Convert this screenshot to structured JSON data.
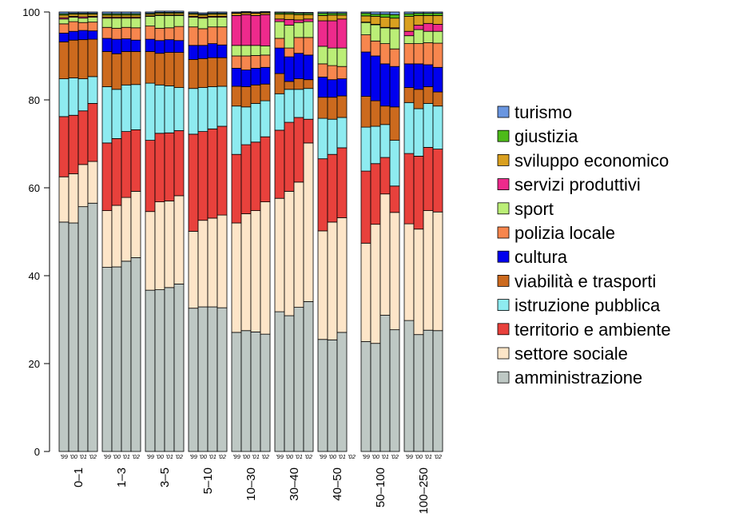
{
  "chart_data": {
    "type": "stacked_bar",
    "groups": [
      "0–1",
      "1–3",
      "3–5",
      "5–10",
      "10–30",
      "30–40",
      "40–50",
      "50–100",
      "100–250"
    ],
    "categories": [
      "'99",
      "'00",
      "'01",
      "'02",
      "'99",
      "'00",
      "'01",
      "'02",
      "'99",
      "'00",
      "'01",
      "'02",
      "'99",
      "'00",
      "'01",
      "'02",
      "'99",
      "'00",
      "'01",
      "'02",
      "'99",
      "'00",
      "'01",
      "'02",
      "'99",
      "'00",
      "'01",
      "'02",
      "'99",
      "'00",
      "'01",
      "'02",
      "'99",
      "'00",
      "'01",
      "'02"
    ],
    "ylim": [
      0,
      100
    ],
    "yticks": [
      0,
      20,
      40,
      60,
      80,
      100
    ],
    "series": [
      {
        "name": "amministrazione",
        "color": "#bec8c4",
        "values": [
          52.2,
          52.0,
          55.7,
          56.5,
          41.9,
          42.0,
          43.3,
          44.1,
          36.7,
          36.8,
          37.3,
          38.1,
          32.6,
          32.9,
          32.9,
          32.7,
          27.1,
          27.5,
          27.2,
          26.7,
          31.8,
          30.9,
          32.8,
          34.1,
          25.5,
          25.4,
          27.1,
          0,
          25.0,
          24.6,
          31.0,
          27.7,
          29.8,
          26.6,
          27.6,
          27.5
        ]
      },
      {
        "name": "settore sociale",
        "color": "#fde5c8",
        "values": [
          10.3,
          11.2,
          9.6,
          9.5,
          12.9,
          14.0,
          14.5,
          15.1,
          17.9,
          20.0,
          19.7,
          20.1,
          17.5,
          19.7,
          20.2,
          21.1,
          24.9,
          26.6,
          27.6,
          30.1,
          25.8,
          28.3,
          28.5,
          36.1,
          24.7,
          26.8,
          26.1,
          0,
          22.4,
          27.1,
          27.6,
          26.7,
          22.0,
          24.0,
          27.2,
          27.0
        ]
      },
      {
        "name": "territorio e ambiente",
        "color": "#e8413c",
        "values": [
          13.7,
          13.3,
          12.2,
          13.2,
          15.4,
          15.2,
          15.0,
          14.0,
          16.2,
          15.6,
          15.5,
          14.8,
          22.1,
          20.2,
          20.3,
          20.2,
          15.6,
          15.7,
          15.6,
          14.8,
          15.5,
          15.7,
          14.7,
          5.4,
          16.4,
          15.4,
          15.9,
          0,
          16.4,
          13.8,
          8.3,
          6.0,
          16.0,
          16.6,
          14.4,
          14.3
        ]
      },
      {
        "name": "istruzione pubblica",
        "color": "#8eebf0",
        "values": [
          8.6,
          8.5,
          7.3,
          6.1,
          12.8,
          11.2,
          10.6,
          10.3,
          13.0,
          11.0,
          10.7,
          9.8,
          10.4,
          10.0,
          9.6,
          9.1,
          11.0,
          8.6,
          8.8,
          8.2,
          8.3,
          7.5,
          6.4,
          7.0,
          9.2,
          8.0,
          6.9,
          0,
          10.0,
          8.5,
          7.5,
          10.4,
          11.6,
          10.8,
          10.0,
          9.8
        ]
      },
      {
        "name": "viabilità e trasporti",
        "color": "#cc6a1e",
        "values": [
          8.4,
          8.6,
          8.9,
          8.5,
          8.0,
          8.1,
          7.6,
          7.5,
          7.2,
          7.2,
          7.6,
          8.0,
          6.6,
          6.6,
          6.6,
          6.5,
          4.5,
          4.6,
          4.2,
          3.8,
          4.6,
          1.8,
          2.4,
          2.0,
          4.8,
          5.0,
          4.9,
          0,
          7.0,
          5.8,
          4.2,
          7.6,
          3.4,
          4.4,
          3.8,
          3.2
        ]
      },
      {
        "name": "cultura",
        "color": "#0000ee",
        "values": [
          2.0,
          2.0,
          2.1,
          1.9,
          3.0,
          3.3,
          2.9,
          2.6,
          2.8,
          2.9,
          2.9,
          2.7,
          3.2,
          3.0,
          3.2,
          2.9,
          4.1,
          3.8,
          3.8,
          3.8,
          5.8,
          5.6,
          5.8,
          5.6,
          4.6,
          4.0,
          3.9,
          0,
          10.1,
          10.2,
          9.6,
          9.2,
          5.4,
          5.8,
          5.0,
          5.6
        ]
      },
      {
        "name": "polizia locale",
        "color": "#f7864e",
        "values": [
          2.1,
          2.2,
          1.8,
          2.0,
          2.5,
          2.5,
          2.6,
          2.8,
          3.0,
          2.8,
          2.7,
          3.2,
          4.2,
          3.8,
          3.8,
          4.1,
          2.8,
          3.2,
          2.9,
          2.8,
          2.2,
          2.0,
          3.6,
          4.0,
          3.0,
          3.2,
          2.8,
          0,
          3.9,
          3.4,
          4.6,
          4.0,
          4.6,
          4.6,
          5.0,
          5.5
        ]
      },
      {
        "name": "sport",
        "color": "#bbee77",
        "values": [
          1.1,
          1.0,
          1.0,
          1.1,
          2.1,
          2.3,
          2.1,
          2.2,
          2.2,
          2.9,
          2.8,
          2.5,
          2.2,
          2.4,
          2.2,
          2.2,
          2.4,
          2.4,
          2.3,
          2.1,
          3.8,
          5.2,
          3.4,
          3.6,
          4.0,
          4.0,
          4.2,
          0,
          2.8,
          3.7,
          3.6,
          4.6,
          1.8,
          3.2,
          2.6,
          2.7
        ]
      },
      {
        "name": "servizi produttivi",
        "color": "#ee2a8c",
        "values": [
          0.3,
          0.2,
          0.3,
          0.2,
          0.2,
          0.2,
          0.2,
          0.2,
          0.1,
          0.1,
          0.1,
          0.1,
          0.2,
          0.2,
          0.2,
          0.2,
          6.8,
          7.0,
          6.8,
          7.1,
          0.6,
          1.3,
          0.6,
          0.6,
          5.8,
          6.2,
          6.6,
          0,
          0.1,
          0.1,
          0.1,
          0.2,
          1.0,
          1.0,
          1.8,
          1.6
        ]
      },
      {
        "name": "sviluppo economico",
        "color": "#d9a020",
        "values": [
          0.6,
          0.5,
          0.6,
          0.5,
          0.5,
          0.5,
          0.5,
          0.5,
          0.4,
          0.4,
          0.4,
          0.4,
          0.5,
          0.5,
          0.5,
          0.5,
          0.5,
          0.4,
          0.5,
          0.4,
          1.1,
          1.2,
          1.2,
          1.0,
          1.2,
          1.3,
          0.9,
          0,
          1.4,
          1.8,
          2.3,
          2.2,
          3.4,
          2.2,
          1.8,
          2.0
        ]
      },
      {
        "name": "giustizia",
        "color": "#4dbb1a",
        "values": [
          0.3,
          0.2,
          0.2,
          0.2,
          0.3,
          0.3,
          0.3,
          0.3,
          0.2,
          0.2,
          0.2,
          0.2,
          0.2,
          0.2,
          0.2,
          0.2,
          0.1,
          0.1,
          0.1,
          0.1,
          0.3,
          0.3,
          0.3,
          0.3,
          0.5,
          0.4,
          0.4,
          0,
          0.6,
          0.5,
          0.7,
          0.8,
          0.6,
          0.5,
          0.5,
          0.5
        ]
      },
      {
        "name": "turismo",
        "color": "#6a96e0",
        "values": [
          0.4,
          0.3,
          0.3,
          0.3,
          0.4,
          0.4,
          0.4,
          0.4,
          0.3,
          0.3,
          0.3,
          0.3,
          0.3,
          0.3,
          0.3,
          0.3,
          0.2,
          0.2,
          0.2,
          0.2,
          0.2,
          0.2,
          0.2,
          0.2,
          0.3,
          0.3,
          0.3,
          0,
          0.3,
          0.5,
          0.5,
          0.6,
          0.4,
          0.3,
          0.3,
          0.3
        ]
      }
    ]
  }
}
